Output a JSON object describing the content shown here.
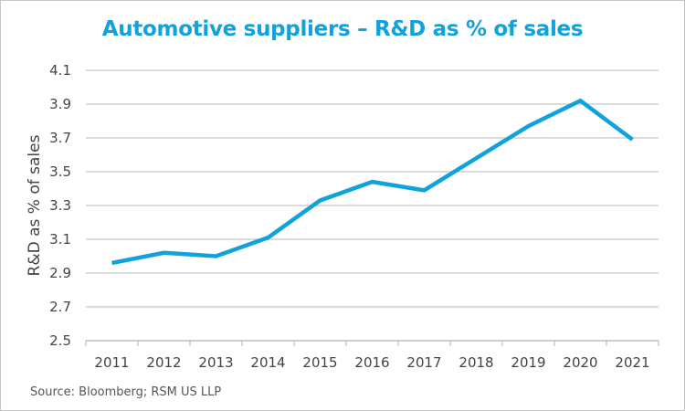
{
  "chart_data": {
    "type": "line",
    "title": "Automotive suppliers – R&D as % of sales",
    "xlabel": "",
    "ylabel": "R&D as % of sales",
    "categories": [
      "2011",
      "2012",
      "2013",
      "2014",
      "2015",
      "2016",
      "2017",
      "2018",
      "2019",
      "2020",
      "2021"
    ],
    "series": [
      {
        "name": "R&D as % of sales",
        "values": [
          2.96,
          3.02,
          3.0,
          3.11,
          3.33,
          3.44,
          3.39,
          3.58,
          3.77,
          3.92,
          3.69
        ]
      }
    ],
    "ylim": [
      2.5,
      4.1
    ],
    "yticks": [
      "2.5",
      "2.7",
      "2.9",
      "3.1",
      "3.3",
      "3.5",
      "3.7",
      "3.9",
      "4.1"
    ],
    "grid": true,
    "legend": "none",
    "line_color": "#10a2dc",
    "source": "Source: Bloomberg; RSM US LLP"
  }
}
